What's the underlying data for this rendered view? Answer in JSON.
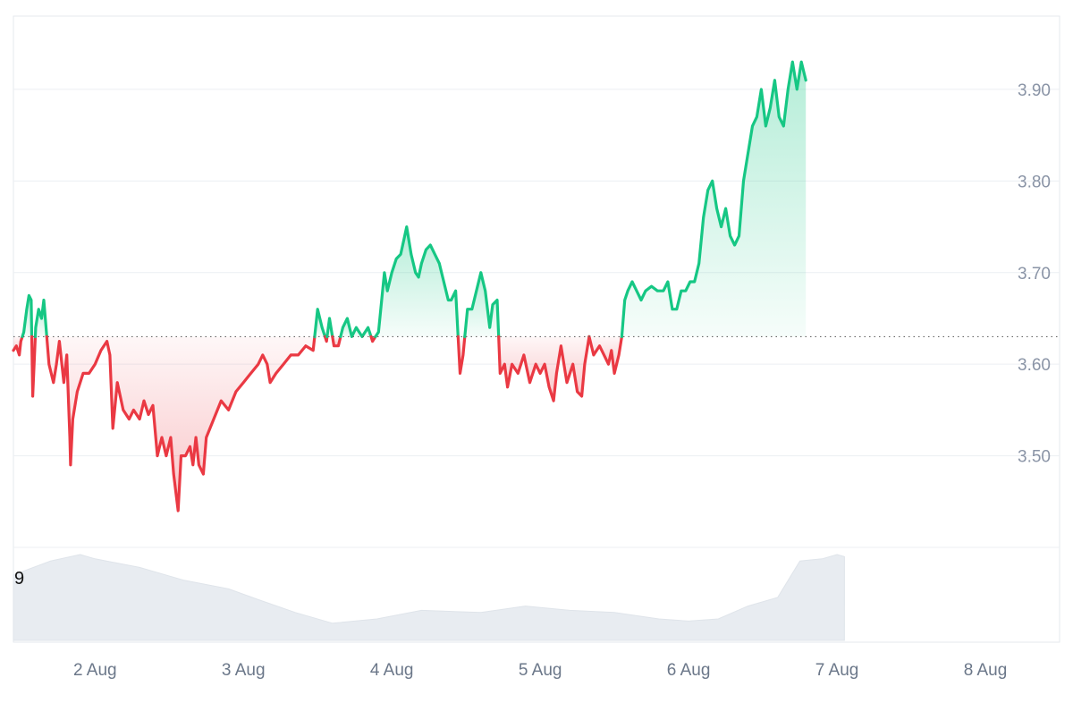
{
  "chart_data": {
    "type": "area",
    "baseline": 3.63,
    "ylim": [
      3.4,
      3.98
    ],
    "y_ticks": [
      "3.50",
      "3.60",
      "3.70",
      "3.80",
      "3.90"
    ],
    "x_tick_labels": [
      "2 Aug",
      "3 Aug",
      "4 Aug",
      "5 Aug",
      "6 Aug",
      "7 Aug",
      "8 Aug"
    ],
    "x_range_days": [
      1.45,
      8.5
    ],
    "grid": true,
    "colors": {
      "up": "#16c784",
      "down": "#ea3943",
      "grid": "#eceff3",
      "volume": "#e8ecf1"
    },
    "volume_axis_label": "9",
    "price_series": [
      [
        1.45,
        3.615
      ],
      [
        1.47,
        3.62
      ],
      [
        1.49,
        3.61
      ],
      [
        1.5,
        3.625
      ],
      [
        1.52,
        3.635
      ],
      [
        1.54,
        3.66
      ],
      [
        1.555,
        3.675
      ],
      [
        1.57,
        3.67
      ],
      [
        1.58,
        3.565
      ],
      [
        1.6,
        3.64
      ],
      [
        1.62,
        3.66
      ],
      [
        1.64,
        3.65
      ],
      [
        1.655,
        3.67
      ],
      [
        1.67,
        3.64
      ],
      [
        1.69,
        3.6
      ],
      [
        1.72,
        3.58
      ],
      [
        1.74,
        3.6
      ],
      [
        1.76,
        3.625
      ],
      [
        1.79,
        3.58
      ],
      [
        1.81,
        3.61
      ],
      [
        1.83,
        3.52
      ],
      [
        1.835,
        3.49
      ],
      [
        1.85,
        3.54
      ],
      [
        1.88,
        3.57
      ],
      [
        1.92,
        3.59
      ],
      [
        1.96,
        3.59
      ],
      [
        2.0,
        3.6
      ],
      [
        2.04,
        3.615
      ],
      [
        2.08,
        3.625
      ],
      [
        2.1,
        3.61
      ],
      [
        2.12,
        3.53
      ],
      [
        2.15,
        3.58
      ],
      [
        2.19,
        3.55
      ],
      [
        2.23,
        3.54
      ],
      [
        2.26,
        3.55
      ],
      [
        2.3,
        3.54
      ],
      [
        2.33,
        3.56
      ],
      [
        2.36,
        3.545
      ],
      [
        2.39,
        3.555
      ],
      [
        2.42,
        3.5
      ],
      [
        2.45,
        3.52
      ],
      [
        2.48,
        3.5
      ],
      [
        2.51,
        3.52
      ],
      [
        2.53,
        3.48
      ],
      [
        2.56,
        3.44
      ],
      [
        2.58,
        3.5
      ],
      [
        2.61,
        3.5
      ],
      [
        2.64,
        3.51
      ],
      [
        2.66,
        3.49
      ],
      [
        2.68,
        3.52
      ],
      [
        2.7,
        3.49
      ],
      [
        2.73,
        3.48
      ],
      [
        2.75,
        3.52
      ],
      [
        2.8,
        3.54
      ],
      [
        2.85,
        3.56
      ],
      [
        2.9,
        3.55
      ],
      [
        2.95,
        3.57
      ],
      [
        3.0,
        3.58
      ],
      [
        3.05,
        3.59
      ],
      [
        3.1,
        3.6
      ],
      [
        3.13,
        3.61
      ],
      [
        3.16,
        3.6
      ],
      [
        3.18,
        3.58
      ],
      [
        3.22,
        3.59
      ],
      [
        3.27,
        3.6
      ],
      [
        3.32,
        3.61
      ],
      [
        3.37,
        3.61
      ],
      [
        3.42,
        3.62
      ],
      [
        3.47,
        3.615
      ],
      [
        3.5,
        3.66
      ],
      [
        3.53,
        3.64
      ],
      [
        3.56,
        3.625
      ],
      [
        3.58,
        3.65
      ],
      [
        3.61,
        3.62
      ],
      [
        3.64,
        3.62
      ],
      [
        3.67,
        3.64
      ],
      [
        3.7,
        3.65
      ],
      [
        3.73,
        3.63
      ],
      [
        3.76,
        3.64
      ],
      [
        3.8,
        3.63
      ],
      [
        3.84,
        3.64
      ],
      [
        3.87,
        3.625
      ],
      [
        3.89,
        3.63
      ],
      [
        3.91,
        3.635
      ],
      [
        3.95,
        3.7
      ],
      [
        3.97,
        3.68
      ],
      [
        4.0,
        3.7
      ],
      [
        4.03,
        3.715
      ],
      [
        4.06,
        3.72
      ],
      [
        4.08,
        3.735
      ],
      [
        4.1,
        3.75
      ],
      [
        4.13,
        3.72
      ],
      [
        4.16,
        3.7
      ],
      [
        4.18,
        3.695
      ],
      [
        4.2,
        3.71
      ],
      [
        4.23,
        3.725
      ],
      [
        4.26,
        3.73
      ],
      [
        4.29,
        3.72
      ],
      [
        4.32,
        3.71
      ],
      [
        4.35,
        3.69
      ],
      [
        4.38,
        3.67
      ],
      [
        4.4,
        3.67
      ],
      [
        4.43,
        3.68
      ],
      [
        4.46,
        3.59
      ],
      [
        4.48,
        3.61
      ],
      [
        4.51,
        3.66
      ],
      [
        4.54,
        3.66
      ],
      [
        4.57,
        3.68
      ],
      [
        4.6,
        3.7
      ],
      [
        4.63,
        3.68
      ],
      [
        4.66,
        3.64
      ],
      [
        4.68,
        3.665
      ],
      [
        4.71,
        3.67
      ],
      [
        4.73,
        3.59
      ],
      [
        4.76,
        3.6
      ],
      [
        4.78,
        3.575
      ],
      [
        4.81,
        3.6
      ],
      [
        4.85,
        3.59
      ],
      [
        4.89,
        3.61
      ],
      [
        4.93,
        3.58
      ],
      [
        4.97,
        3.6
      ],
      [
        5.0,
        3.59
      ],
      [
        5.03,
        3.6
      ],
      [
        5.06,
        3.575
      ],
      [
        5.09,
        3.56
      ],
      [
        5.11,
        3.59
      ],
      [
        5.14,
        3.62
      ],
      [
        5.18,
        3.58
      ],
      [
        5.22,
        3.6
      ],
      [
        5.25,
        3.57
      ],
      [
        5.28,
        3.565
      ],
      [
        5.3,
        3.6
      ],
      [
        5.33,
        3.63
      ],
      [
        5.36,
        3.61
      ],
      [
        5.4,
        3.62
      ],
      [
        5.43,
        3.61
      ],
      [
        5.46,
        3.6
      ],
      [
        5.48,
        3.615
      ],
      [
        5.5,
        3.59
      ],
      [
        5.53,
        3.61
      ],
      [
        5.55,
        3.63
      ],
      [
        5.57,
        3.67
      ],
      [
        5.59,
        3.68
      ],
      [
        5.62,
        3.69
      ],
      [
        5.65,
        3.68
      ],
      [
        5.68,
        3.67
      ],
      [
        5.71,
        3.68
      ],
      [
        5.75,
        3.685
      ],
      [
        5.79,
        3.68
      ],
      [
        5.83,
        3.68
      ],
      [
        5.86,
        3.69
      ],
      [
        5.89,
        3.66
      ],
      [
        5.92,
        3.66
      ],
      [
        5.95,
        3.68
      ],
      [
        5.98,
        3.68
      ],
      [
        6.01,
        3.69
      ],
      [
        6.04,
        3.69
      ],
      [
        6.07,
        3.71
      ],
      [
        6.1,
        3.76
      ],
      [
        6.13,
        3.79
      ],
      [
        6.16,
        3.8
      ],
      [
        6.19,
        3.77
      ],
      [
        6.22,
        3.75
      ],
      [
        6.25,
        3.77
      ],
      [
        6.28,
        3.74
      ],
      [
        6.31,
        3.73
      ],
      [
        6.34,
        3.74
      ],
      [
        6.37,
        3.8
      ],
      [
        6.4,
        3.83
      ],
      [
        6.43,
        3.86
      ],
      [
        6.46,
        3.87
      ],
      [
        6.49,
        3.9
      ],
      [
        6.52,
        3.86
      ],
      [
        6.55,
        3.88
      ],
      [
        6.58,
        3.91
      ],
      [
        6.61,
        3.87
      ],
      [
        6.64,
        3.86
      ],
      [
        6.67,
        3.9
      ],
      [
        6.7,
        3.93
      ],
      [
        6.73,
        3.9
      ],
      [
        6.76,
        3.93
      ],
      [
        6.79,
        3.91
      ]
    ],
    "volume_series": [
      [
        1.45,
        3.05
      ],
      [
        1.7,
        3.7
      ],
      [
        1.9,
        4.0
      ],
      [
        2.0,
        3.8
      ],
      [
        2.3,
        3.4
      ],
      [
        2.6,
        2.8
      ],
      [
        2.9,
        2.4
      ],
      [
        3.1,
        1.9
      ],
      [
        3.35,
        1.3
      ],
      [
        3.6,
        0.8
      ],
      [
        3.9,
        1.0
      ],
      [
        4.2,
        1.4
      ],
      [
        4.6,
        1.3
      ],
      [
        4.9,
        1.6
      ],
      [
        5.2,
        1.4
      ],
      [
        5.5,
        1.3
      ],
      [
        5.8,
        1.0
      ],
      [
        6.0,
        0.9
      ],
      [
        6.2,
        1.0
      ],
      [
        6.4,
        1.6
      ],
      [
        6.6,
        2.0
      ],
      [
        6.75,
        3.7
      ],
      [
        6.9,
        3.8
      ],
      [
        7.0,
        4.0
      ],
      [
        7.05,
        3.9
      ]
    ]
  }
}
